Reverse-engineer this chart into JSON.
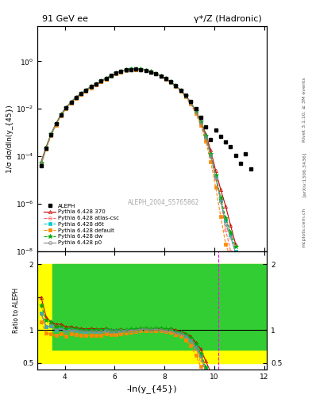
{
  "title_left": "91 GeV ee",
  "title_right": "γ*/Z (Hadronic)",
  "ylabel_main": "1/σ dσ/dln(y_{45})",
  "ylabel_ratio": "Ratio to ALEPH",
  "xlabel": "-ln(y_{45})",
  "watermark": "ALEPH_2004_S5765862",
  "right_label": "Rivet 3.1.10, ≥ 3M events",
  "right_label2": "[arXiv:1306.3436]",
  "right_label3": "mcplots.cern.ch",
  "xlim": [
    2.9,
    12.1
  ],
  "ylim_main": [
    1e-08,
    30
  ],
  "ylim_ratio": [
    0.4,
    2.2
  ],
  "aleph_x": [
    3.05,
    3.25,
    3.45,
    3.65,
    3.85,
    4.05,
    4.25,
    4.45,
    4.65,
    4.85,
    5.05,
    5.25,
    5.45,
    5.65,
    5.85,
    6.05,
    6.25,
    6.45,
    6.65,
    6.85,
    7.05,
    7.25,
    7.45,
    7.65,
    7.85,
    8.05,
    8.25,
    8.45,
    8.65,
    8.85,
    9.05,
    9.25,
    9.45,
    9.65,
    9.85,
    10.05,
    10.25,
    10.45,
    10.65,
    10.85,
    11.05,
    11.25,
    11.45
  ],
  "aleph_y": [
    4e-05,
    0.00021,
    0.0008,
    0.0023,
    0.0055,
    0.011,
    0.019,
    0.03,
    0.044,
    0.062,
    0.085,
    0.11,
    0.15,
    0.19,
    0.25,
    0.32,
    0.38,
    0.43,
    0.46,
    0.47,
    0.45,
    0.41,
    0.36,
    0.3,
    0.24,
    0.185,
    0.135,
    0.095,
    0.062,
    0.038,
    0.021,
    0.0105,
    0.0045,
    0.0017,
    0.0005,
    0.0013,
    0.0007,
    0.0004,
    0.00025,
    0.00011,
    5e-05,
    0.00013,
    3e-05
  ],
  "py370_x": [
    3.05,
    3.25,
    3.45,
    3.65,
    3.85,
    4.05,
    4.25,
    4.45,
    4.65,
    4.85,
    5.05,
    5.25,
    5.45,
    5.65,
    5.85,
    6.05,
    6.25,
    6.45,
    6.65,
    6.85,
    7.05,
    7.25,
    7.45,
    7.65,
    7.85,
    8.05,
    8.25,
    8.45,
    8.65,
    8.85,
    9.05,
    9.25,
    9.45,
    9.65,
    9.85,
    10.05,
    10.25,
    10.45,
    10.65,
    10.85
  ],
  "py370_y": [
    6e-05,
    0.00025,
    0.0009,
    0.0025,
    0.006,
    0.0115,
    0.02,
    0.031,
    0.045,
    0.063,
    0.087,
    0.112,
    0.152,
    0.195,
    0.252,
    0.322,
    0.385,
    0.432,
    0.465,
    0.475,
    0.46,
    0.42,
    0.365,
    0.308,
    0.245,
    0.188,
    0.138,
    0.095,
    0.061,
    0.036,
    0.019,
    0.0085,
    0.0032,
    0.0009,
    0.00018,
    2.5e-05,
    4e-06,
    8e-07,
    1.2e-07,
    2e-08
  ],
  "atlas_x": [
    3.05,
    3.25,
    3.45,
    3.65,
    3.85,
    4.05,
    4.25,
    4.45,
    4.65,
    4.85,
    5.05,
    5.25,
    5.45,
    5.65,
    5.85,
    6.05,
    6.25,
    6.45,
    6.65,
    6.85,
    7.05,
    7.25,
    7.45,
    7.65,
    7.85,
    8.05,
    8.25,
    8.45,
    8.65,
    8.85,
    9.05,
    9.25,
    9.45,
    9.65,
    9.85,
    10.05,
    10.25,
    10.45,
    10.65,
    10.85
  ],
  "atlas_y": [
    5e-05,
    0.00022,
    0.00085,
    0.0023,
    0.0057,
    0.0108,
    0.019,
    0.0295,
    0.043,
    0.06,
    0.082,
    0.106,
    0.144,
    0.185,
    0.24,
    0.308,
    0.37,
    0.42,
    0.455,
    0.465,
    0.452,
    0.415,
    0.36,
    0.302,
    0.24,
    0.182,
    0.132,
    0.09,
    0.058,
    0.034,
    0.0175,
    0.0075,
    0.0025,
    0.0006,
    0.0001,
    1.2e-05,
    1.5e-06,
    8e-08,
    1e-08,
    5e-09
  ],
  "d6t_x": [
    3.05,
    3.25,
    3.45,
    3.65,
    3.85,
    4.05,
    4.25,
    4.45,
    4.65,
    4.85,
    5.05,
    5.25,
    5.45,
    5.65,
    5.85,
    6.05,
    6.25,
    6.45,
    6.65,
    6.85,
    7.05,
    7.25,
    7.45,
    7.65,
    7.85,
    8.05,
    8.25,
    8.45,
    8.65,
    8.85,
    9.05,
    9.25,
    9.45,
    9.65,
    9.85,
    10.05,
    10.25,
    10.45,
    10.65,
    10.85
  ],
  "d6t_y": [
    5e-05,
    0.00022,
    0.00085,
    0.0023,
    0.0057,
    0.011,
    0.0192,
    0.03,
    0.0435,
    0.061,
    0.084,
    0.108,
    0.148,
    0.19,
    0.247,
    0.315,
    0.378,
    0.428,
    0.462,
    0.472,
    0.458,
    0.418,
    0.362,
    0.304,
    0.242,
    0.184,
    0.134,
    0.092,
    0.059,
    0.035,
    0.018,
    0.008,
    0.0028,
    0.0007,
    0.00012,
    1.5e-05,
    1.5e-06,
    2e-07,
    5e-08,
    1e-08
  ],
  "default_x": [
    3.05,
    3.25,
    3.45,
    3.65,
    3.85,
    4.05,
    4.25,
    4.45,
    4.65,
    4.85,
    5.05,
    5.25,
    5.45,
    5.65,
    5.85,
    6.05,
    6.25,
    6.45,
    6.65,
    6.85,
    7.05,
    7.25,
    7.45,
    7.65,
    7.85,
    8.05,
    8.25,
    8.45,
    8.65,
    8.85,
    9.05,
    9.25,
    9.45,
    9.65,
    9.85,
    10.05,
    10.25,
    10.45,
    10.65,
    10.85
  ],
  "default_y": [
    4.5e-05,
    0.0002,
    0.00075,
    0.0021,
    0.0052,
    0.01,
    0.0178,
    0.0278,
    0.0405,
    0.057,
    0.078,
    0.101,
    0.138,
    0.178,
    0.232,
    0.298,
    0.36,
    0.41,
    0.445,
    0.458,
    0.445,
    0.408,
    0.355,
    0.298,
    0.237,
    0.18,
    0.13,
    0.088,
    0.056,
    0.032,
    0.016,
    0.0065,
    0.002,
    0.00045,
    6e-05,
    5e-06,
    3e-07,
    2e-08,
    5e-09,
    1e-09
  ],
  "dw_x": [
    3.05,
    3.25,
    3.45,
    3.65,
    3.85,
    4.05,
    4.25,
    4.45,
    4.65,
    4.85,
    5.05,
    5.25,
    5.45,
    5.65,
    5.85,
    6.05,
    6.25,
    6.45,
    6.65,
    6.85,
    7.05,
    7.25,
    7.45,
    7.65,
    7.85,
    8.05,
    8.25,
    8.45,
    8.65,
    8.85,
    9.05,
    9.25,
    9.45,
    9.65,
    9.85,
    10.05,
    10.25,
    10.45,
    10.65,
    10.85
  ],
  "dw_y": [
    5.5e-05,
    0.00024,
    0.0009,
    0.0024,
    0.0058,
    0.0112,
    0.0195,
    0.0305,
    0.044,
    0.062,
    0.085,
    0.11,
    0.15,
    0.192,
    0.249,
    0.318,
    0.382,
    0.432,
    0.465,
    0.475,
    0.462,
    0.422,
    0.367,
    0.308,
    0.246,
    0.187,
    0.137,
    0.093,
    0.06,
    0.0355,
    0.0185,
    0.0082,
    0.0029,
    0.00075,
    0.00013,
    1.6e-05,
    1.8e-06,
    2.5e-07,
    6e-08,
    1.5e-08
  ],
  "p0_x": [
    3.05,
    3.25,
    3.45,
    3.65,
    3.85,
    4.05,
    4.25,
    4.45,
    4.65,
    4.85,
    5.05,
    5.25,
    5.45,
    5.65,
    5.85,
    6.05,
    6.25,
    6.45,
    6.65,
    6.85,
    7.05,
    7.25,
    7.45,
    7.65,
    7.85,
    8.05,
    8.25,
    8.45,
    8.65,
    8.85,
    9.05,
    9.25,
    9.45,
    9.65,
    9.85,
    10.05,
    10.25,
    10.45,
    10.65,
    10.85
  ],
  "p0_y": [
    5e-05,
    0.00022,
    0.00085,
    0.0023,
    0.0056,
    0.0108,
    0.019,
    0.0298,
    0.0432,
    0.0605,
    0.083,
    0.107,
    0.146,
    0.188,
    0.244,
    0.312,
    0.375,
    0.425,
    0.458,
    0.468,
    0.455,
    0.416,
    0.36,
    0.303,
    0.241,
    0.183,
    0.133,
    0.091,
    0.0585,
    0.0345,
    0.0178,
    0.0078,
    0.0027,
    0.00065,
    0.00011,
    1.3e-05,
    1.3e-06,
    1.5e-07,
    4e-08,
    8e-09
  ],
  "colors": {
    "py370": "#cc0000",
    "atlas": "#ff6666",
    "d6t": "#00cccc",
    "default": "#ff8800",
    "dw": "#00aa00",
    "p0": "#888888"
  }
}
